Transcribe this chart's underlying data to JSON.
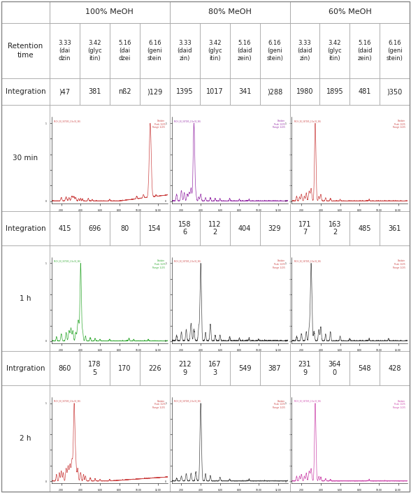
{
  "header_groups": [
    {
      "label": "100% MeOH",
      "start": 1,
      "end": 4
    },
    {
      "label": "80% MeOH",
      "start": 5,
      "end": 8
    },
    {
      "label": "60% MeOH",
      "start": 9,
      "end": 12
    }
  ],
  "col_headers": [
    "3.33\n(dai\ndzin",
    "3.42\n(glyc\nitin)",
    "5.16\n(dai\ndzei",
    "6.16\n(geni\nstein",
    "3.33\n(daid\nzin)",
    "3.42\n(glyc\nitin)",
    "5.16\n(daid\nzein)",
    "6.16\n(geni\nstein)",
    "3.33\n(daid\nzin)",
    "3.42\n(glyc\nitin)",
    "5.16\n(daid\nzein)",
    "6.16\n(geni\nstein)"
  ],
  "rows": [
    {
      "type": "data",
      "label": "Integration",
      "values": [
        ")47",
        "381",
        "nß2",
        ")129",
        "1395",
        "1017",
        "341",
        ")288",
        "1980",
        "1895",
        "481",
        ")350"
      ]
    },
    {
      "type": "chromatogram",
      "label": "30 min",
      "panels": [
        {
          "color": "#cc4444",
          "ctype": "red_right"
        },
        {
          "color": "#9933aa",
          "ctype": "purple_left"
        },
        {
          "color": "#cc4444",
          "ctype": "red_left"
        }
      ]
    },
    {
      "type": "data",
      "label": "Integration",
      "values": [
        "415",
        "696",
        "80",
        "154",
        "158\n6",
        "112\n2",
        "404",
        "329",
        "171\n7",
        "163\n2",
        "485",
        "361"
      ]
    },
    {
      "type": "chromatogram",
      "label": "1 h",
      "panels": [
        {
          "color": "#33aa33",
          "ctype": "green_right"
        },
        {
          "color": "#444444",
          "ctype": "black_left"
        },
        {
          "color": "#444444",
          "ctype": "black_left2"
        }
      ]
    },
    {
      "type": "data",
      "label": "Intrgration",
      "values": [
        "860",
        "178\n5",
        "170",
        "226",
        "212\n9",
        "167\n3",
        "549",
        "387",
        "231\n9",
        "364\n0",
        "548",
        "428"
      ]
    },
    {
      "type": "chromatogram",
      "label": "2 h",
      "panels": [
        {
          "color": "#cc4444",
          "ctype": "red_left2"
        },
        {
          "color": "#444444",
          "ctype": "black_sparse"
        },
        {
          "color": "#cc44aa",
          "ctype": "pink_left"
        }
      ]
    }
  ],
  "background": "#ffffff",
  "border_color": "#aaaaaa",
  "text_color": "#222222"
}
